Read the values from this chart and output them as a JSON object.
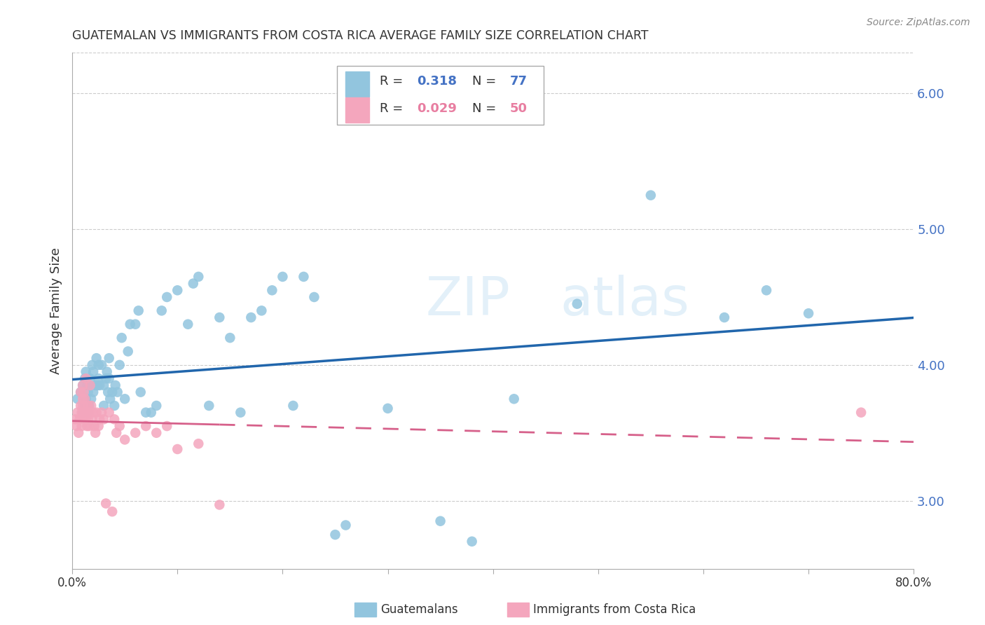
{
  "title": "GUATEMALAN VS IMMIGRANTS FROM COSTA RICA AVERAGE FAMILY SIZE CORRELATION CHART",
  "source": "Source: ZipAtlas.com",
  "ylabel": "Average Family Size",
  "xlim": [
    0.0,
    0.8
  ],
  "ylim": [
    2.5,
    6.3
  ],
  "yticks": [
    3.0,
    4.0,
    5.0,
    6.0
  ],
  "xticks": [
    0.0,
    0.1,
    0.2,
    0.3,
    0.4,
    0.5,
    0.6,
    0.7,
    0.8
  ],
  "xtick_labels": [
    "0.0%",
    "",
    "",
    "",
    "",
    "",
    "",
    "",
    "80.0%"
  ],
  "blue_R": 0.318,
  "blue_N": 77,
  "pink_R": 0.029,
  "pink_N": 50,
  "blue_color": "#92c5de",
  "pink_color": "#f4a6bd",
  "blue_line_color": "#2166ac",
  "pink_line_color": "#d6608a",
  "background_color": "#ffffff",
  "watermark": "ZIPatlas",
  "legend_label_blue": "Guatemalans",
  "legend_label_pink": "Immigrants from Costa Rica",
  "blue_x": [
    0.005,
    0.008,
    0.01,
    0.01,
    0.012,
    0.012,
    0.013,
    0.013,
    0.014,
    0.014,
    0.015,
    0.015,
    0.016,
    0.016,
    0.017,
    0.018,
    0.019,
    0.02,
    0.02,
    0.022,
    0.023,
    0.024,
    0.025,
    0.025,
    0.026,
    0.028,
    0.03,
    0.03,
    0.032,
    0.033,
    0.034,
    0.035,
    0.035,
    0.036,
    0.038,
    0.04,
    0.041,
    0.043,
    0.045,
    0.047,
    0.05,
    0.053,
    0.055,
    0.06,
    0.063,
    0.065,
    0.07,
    0.075,
    0.08,
    0.085,
    0.09,
    0.1,
    0.11,
    0.115,
    0.12,
    0.13,
    0.14,
    0.15,
    0.16,
    0.17,
    0.18,
    0.19,
    0.2,
    0.21,
    0.22,
    0.23,
    0.25,
    0.26,
    0.3,
    0.35,
    0.38,
    0.42,
    0.48,
    0.55,
    0.62,
    0.66,
    0.7
  ],
  "blue_y": [
    3.75,
    3.8,
    3.65,
    3.85,
    3.7,
    3.9,
    3.75,
    3.95,
    3.7,
    3.85,
    3.65,
    3.8,
    3.7,
    3.85,
    3.9,
    3.75,
    4.0,
    3.8,
    3.95,
    3.85,
    4.05,
    3.85,
    3.9,
    4.0,
    3.85,
    4.0,
    3.7,
    3.85,
    3.9,
    3.95,
    3.8,
    3.9,
    4.05,
    3.75,
    3.8,
    3.7,
    3.85,
    3.8,
    4.0,
    4.2,
    3.75,
    4.1,
    4.3,
    4.3,
    4.4,
    3.8,
    3.65,
    3.65,
    3.7,
    4.4,
    4.5,
    4.55,
    4.3,
    4.6,
    4.65,
    3.7,
    4.35,
    4.2,
    3.65,
    4.35,
    4.4,
    4.55,
    4.65,
    3.7,
    4.65,
    4.5,
    2.75,
    2.82,
    3.68,
    2.85,
    2.7,
    3.75,
    4.45,
    5.25,
    4.35,
    4.55,
    4.38
  ],
  "pink_x": [
    0.003,
    0.004,
    0.005,
    0.006,
    0.007,
    0.008,
    0.008,
    0.009,
    0.009,
    0.01,
    0.01,
    0.01,
    0.011,
    0.011,
    0.012,
    0.012,
    0.013,
    0.013,
    0.014,
    0.014,
    0.015,
    0.015,
    0.016,
    0.016,
    0.017,
    0.018,
    0.019,
    0.02,
    0.021,
    0.022,
    0.023,
    0.025,
    0.026,
    0.028,
    0.03,
    0.032,
    0.035,
    0.038,
    0.04,
    0.042,
    0.045,
    0.05,
    0.06,
    0.07,
    0.08,
    0.09,
    0.1,
    0.12,
    0.14,
    0.75
  ],
  "pink_y": [
    3.6,
    3.55,
    3.65,
    3.5,
    3.6,
    3.7,
    3.8,
    3.55,
    3.65,
    3.7,
    3.75,
    3.85,
    3.6,
    3.8,
    3.65,
    3.75,
    3.6,
    3.9,
    3.55,
    3.65,
    3.6,
    3.7,
    3.55,
    3.65,
    3.85,
    3.7,
    3.6,
    3.65,
    3.55,
    3.5,
    3.65,
    3.55,
    3.6,
    3.65,
    3.6,
    2.98,
    3.65,
    2.92,
    3.6,
    3.5,
    3.55,
    3.45,
    3.5,
    3.55,
    3.5,
    3.55,
    3.38,
    3.42,
    2.97,
    3.65
  ]
}
